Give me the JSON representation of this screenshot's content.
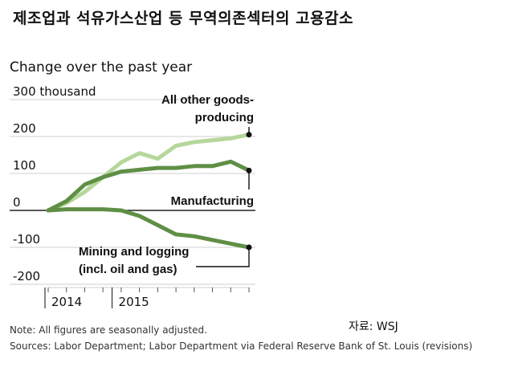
{
  "headline": "제조업과 석유가스산업 등 무역의존섹터의 고용감소",
  "chart_data": {
    "type": "line",
    "title": "Change over the past year",
    "ylim": [
      -200,
      300
    ],
    "yticks": [
      {
        "value": 300,
        "label": "300 thousand"
      },
      {
        "value": 200,
        "label": "200"
      },
      {
        "value": 100,
        "label": "100"
      },
      {
        "value": 0,
        "label": "0"
      },
      {
        "value": -100,
        "label": "-100"
      },
      {
        "value": -200,
        "label": "-200"
      }
    ],
    "x_labels": [
      "2014",
      "2015"
    ],
    "x": [
      "2014-01",
      "2014-04",
      "2014-07",
      "2014-10",
      "2015-01",
      "2015-04",
      "2015-07",
      "2015-10",
      "2016-01",
      "2016-04",
      "2016-07",
      "2016-10"
    ],
    "series": [
      {
        "name": "All other goods-producing",
        "label_lines": [
          "All other goods-",
          "producing"
        ],
        "color": "#b5d79b",
        "values": [
          0,
          20,
          50,
          90,
          130,
          155,
          140,
          175,
          185,
          190,
          195,
          205
        ]
      },
      {
        "name": "Manufacturing",
        "label_lines": [
          "Manufacturing"
        ],
        "color": "#5f8f45",
        "values": [
          0,
          25,
          70,
          90,
          105,
          110,
          115,
          115,
          120,
          120,
          132,
          108
        ]
      },
      {
        "name": "Mining and logging (incl. oil and gas)",
        "label_lines": [
          "Mining and logging",
          "(incl. oil and gas)"
        ],
        "color": "#5f8f45",
        "values": [
          0,
          3,
          3,
          3,
          0,
          -15,
          -40,
          -65,
          -70,
          -80,
          -90,
          -100
        ]
      }
    ],
    "grid": true
  },
  "credit": "자료: WSJ",
  "note": "Note: All figures are seasonally adjusted.",
  "sources": "Sources: Labor Department; Labor Department via Federal Reserve Bank of St. Louis (revisions)"
}
